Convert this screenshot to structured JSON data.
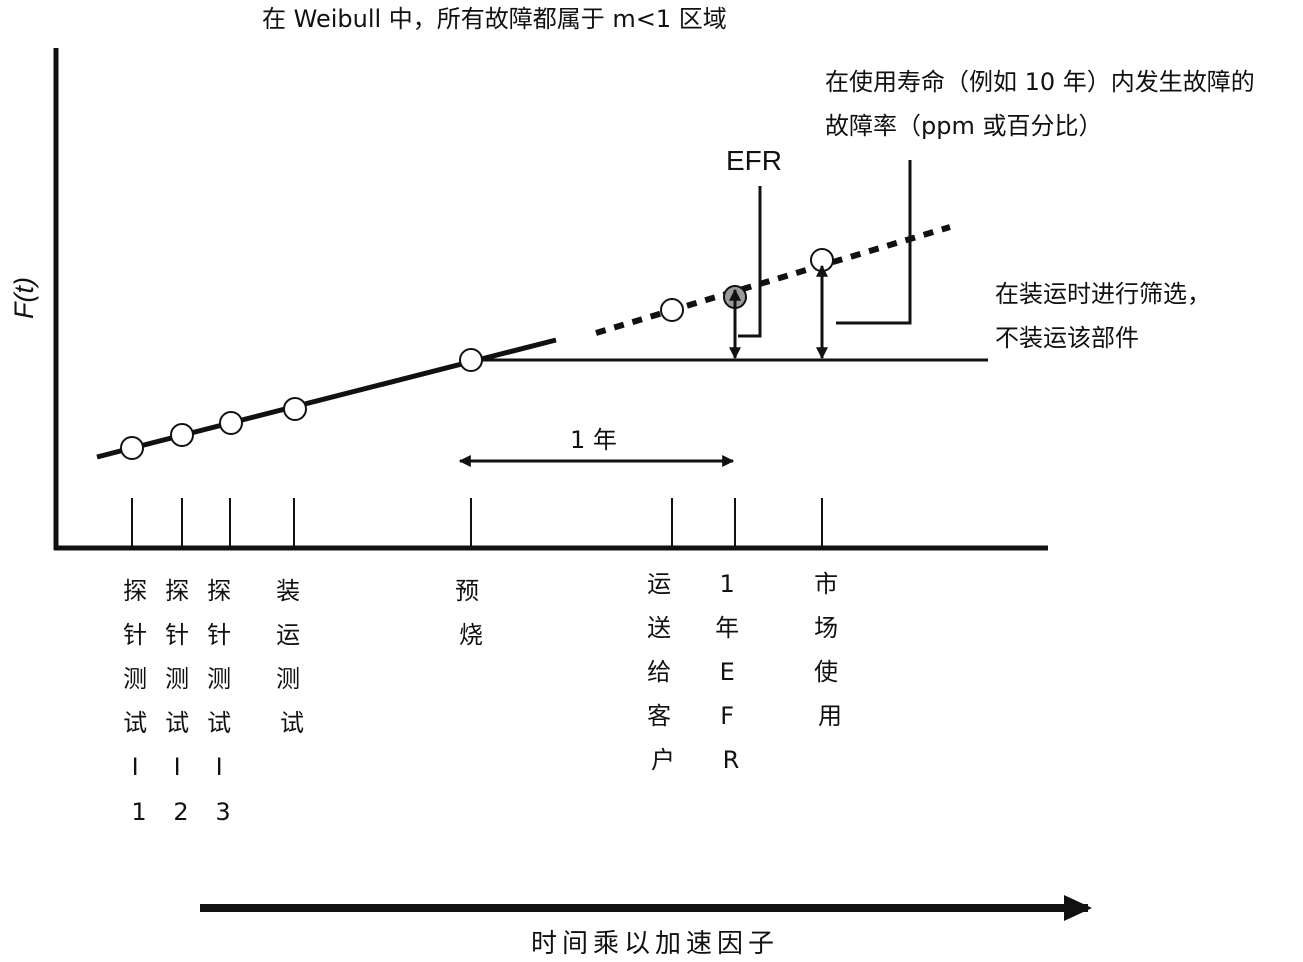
{
  "annotations": {
    "top": "在 Weibull 中，所有故障都属于 m<1 区域",
    "rate_line1": "在使用寿命（例如 10 年）内发生故障的",
    "rate_line2": "故障率（ppm 或百分比）",
    "efr": "EFR",
    "screen_line1": "在装运时进行筛选，",
    "screen_line2": "不装运该部件",
    "one_year": "1 年"
  },
  "axes": {
    "y_label": "F(t)",
    "x_label": "时间乘以加速因子"
  },
  "milestones": [
    {
      "chars": [
        "探",
        "针",
        "测",
        "试",
        "Ⅰ",
        "1"
      ]
    },
    {
      "chars": [
        "探",
        "针",
        "测",
        "试",
        "Ⅰ",
        "2"
      ]
    },
    {
      "chars": [
        "探",
        "针",
        "测",
        "试",
        "Ⅰ",
        "3"
      ]
    },
    {
      "chars": [
        "装",
        "运",
        "测",
        "试"
      ]
    },
    {
      "chars": [
        "预",
        "烧"
      ]
    },
    {
      "chars": [
        "运",
        "送",
        "给",
        "客",
        "户"
      ]
    },
    {
      "chars": [
        "1",
        "年",
        "E",
        "F",
        "R"
      ]
    },
    {
      "chars": [
        "市",
        "场",
        "使",
        "用"
      ]
    }
  ]
}
